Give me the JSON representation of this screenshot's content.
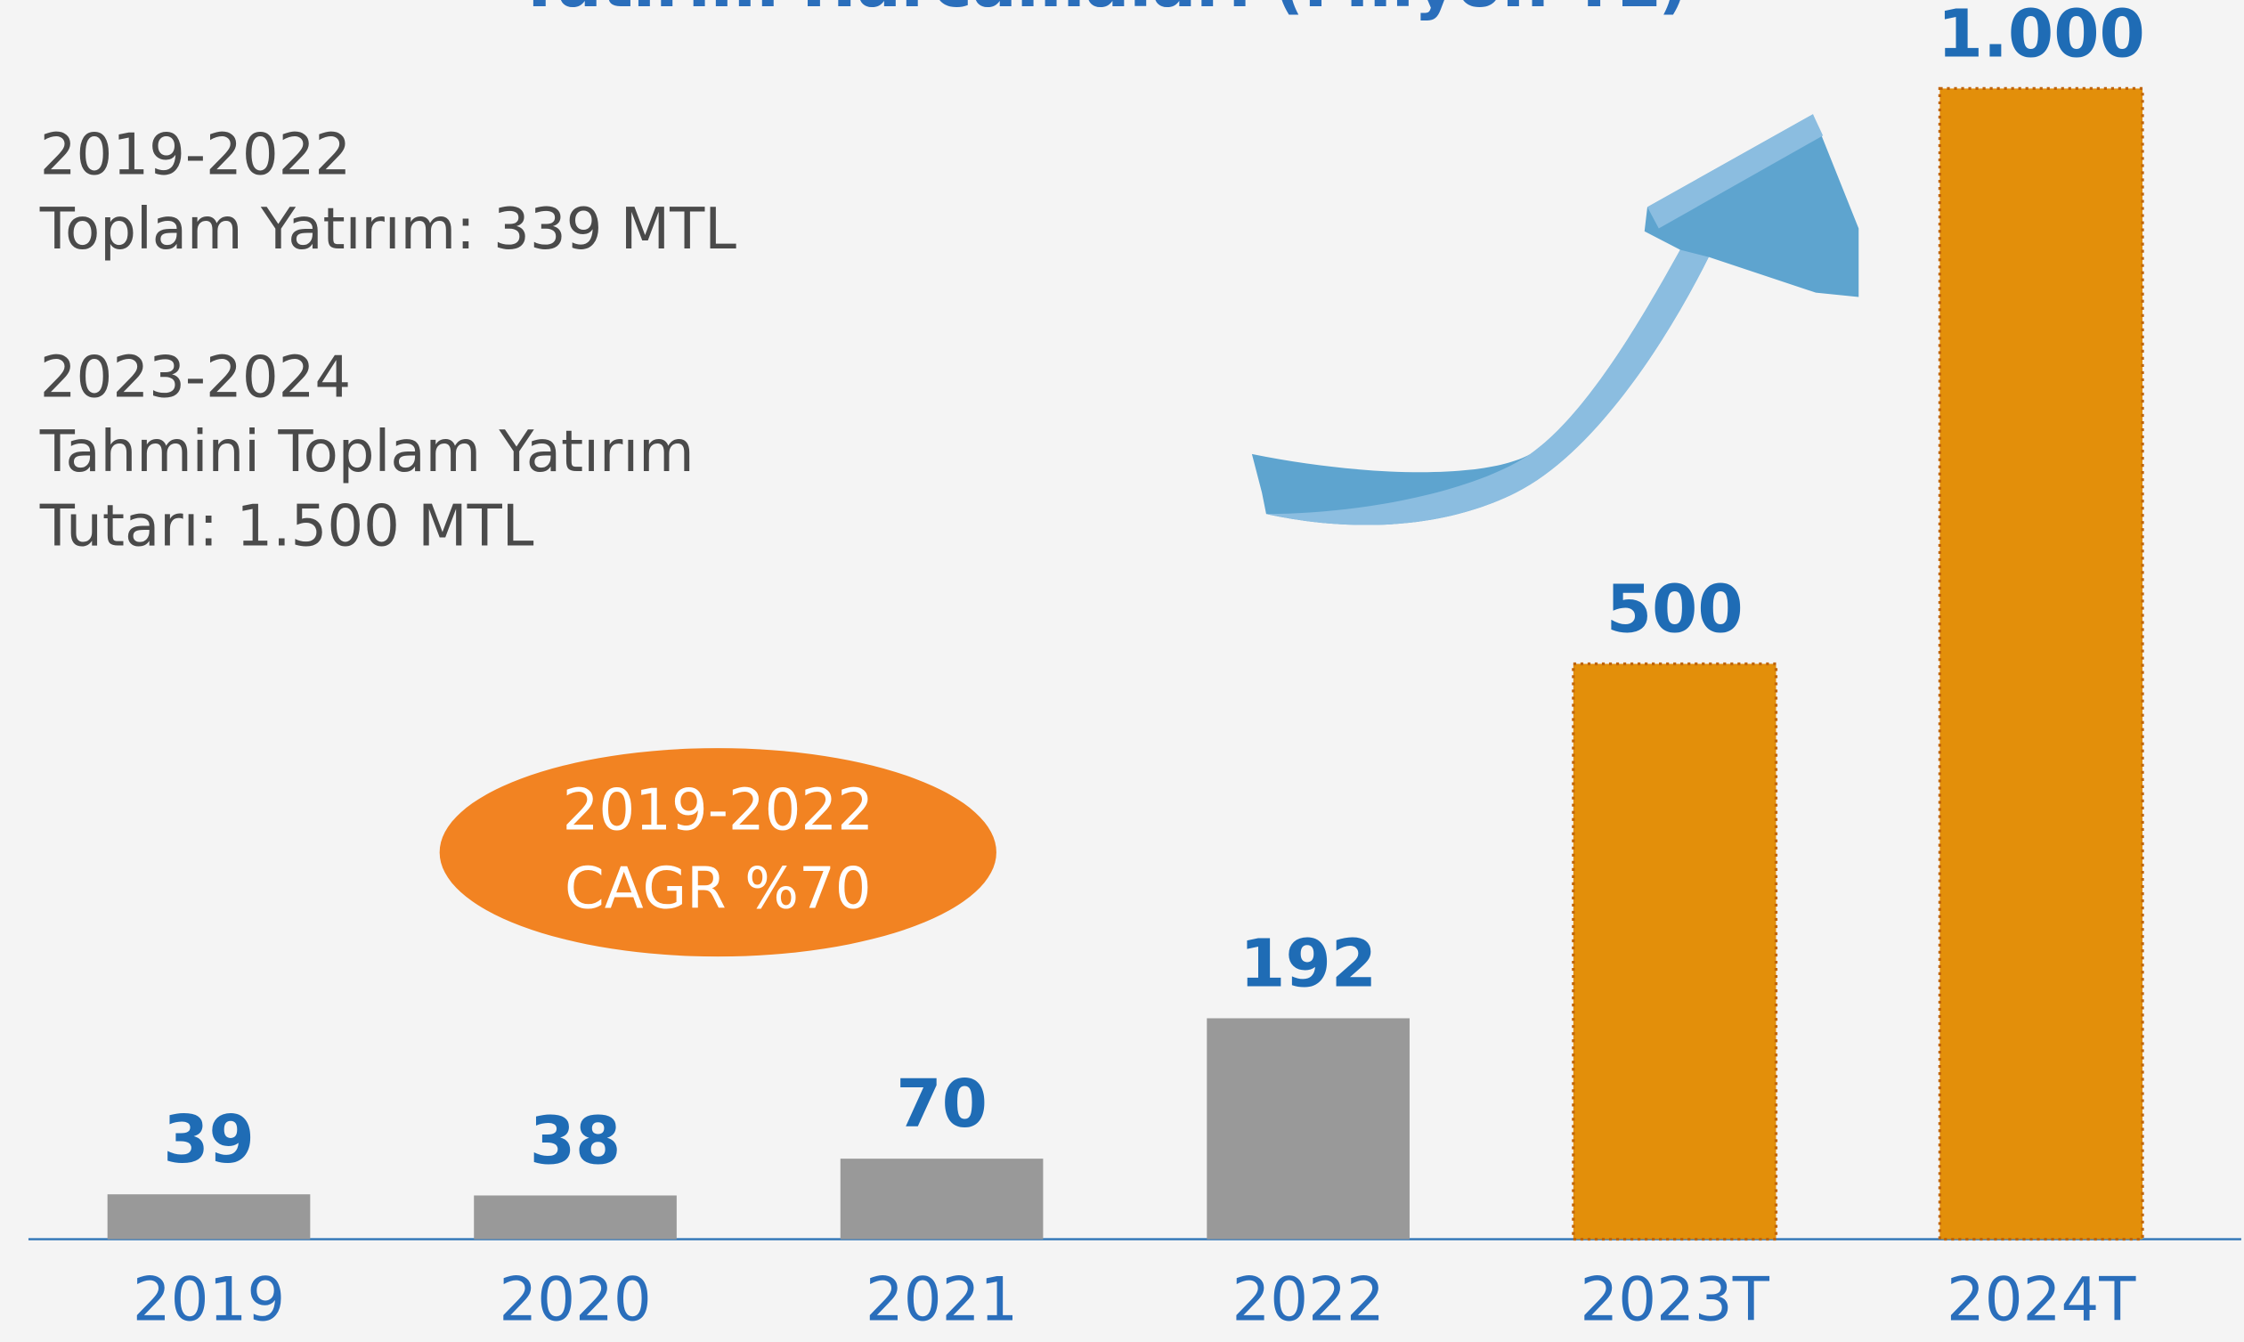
{
  "chart_data": {
    "type": "bar",
    "title": "Yatırım Harcamaları (Milyon TL)",
    "categories": [
      "2019",
      "2020",
      "2021",
      "2022",
      "2023T",
      "2024T"
    ],
    "values": [
      39,
      38,
      70,
      192,
      500,
      1000
    ],
    "value_labels": [
      "39",
      "38",
      "70",
      "192",
      "500",
      "1.000"
    ],
    "colors": [
      "#999999",
      "#999999",
      "#999999",
      "#999999",
      "#e38f0a",
      "#e38f0a"
    ],
    "ylim": [
      0,
      1000
    ],
    "notes": [
      [
        "2019-2022",
        "Toplam Yatırım: 339 MTL"
      ],
      [
        "2023-2024",
        "Tahmini Toplam Yatırım",
        "Tutarı: 1.500 MTL"
      ]
    ],
    "badge": [
      "2019-2022",
      "CAGR %70"
    ]
  }
}
